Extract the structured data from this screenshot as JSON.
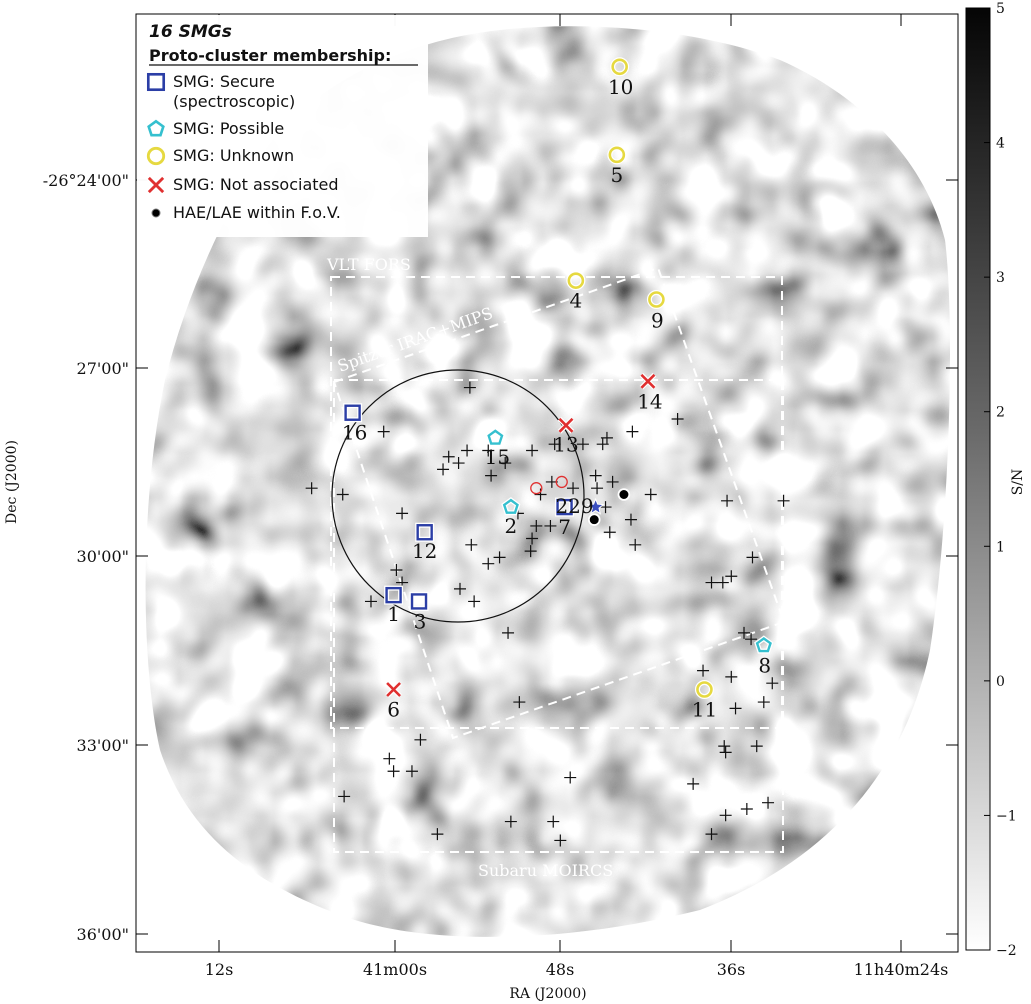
{
  "chart_data": {
    "type": "scatter",
    "xlabel": "RA (J2000)",
    "ylabel": "Dec (J2000)",
    "x_ticks": [
      "12s",
      "41m00s",
      "48s",
      "36s",
      "11h40m24s"
    ],
    "y_ticks": [
      "-26°24'00\"",
      "27'00\"",
      "30'00\"",
      "33'00\"",
      "36'00\""
    ],
    "colorbar": {
      "label": "S/N",
      "range": [
        -2,
        5
      ],
      "ticks": [
        "5",
        "4",
        "3",
        "2",
        "1",
        "0",
        "−1",
        "−2"
      ]
    },
    "legend": {
      "title": "16 SMGs",
      "subtitle": "Proto-cluster membership:",
      "entries": [
        {
          "key": "secure",
          "lines": [
            "SMG: Secure",
            "(spectroscopic)"
          ],
          "color": "#2b3ea6",
          "marker": "square"
        },
        {
          "key": "possible",
          "lines": [
            "SMG: Possible"
          ],
          "color": "#35c0cf",
          "marker": "pentagon"
        },
        {
          "key": "unknown",
          "lines": [
            "SMG: Unknown"
          ],
          "color": "#e6d940",
          "marker": "circle"
        },
        {
          "key": "not_associated",
          "lines": [
            "SMG: Not associated"
          ],
          "color": "#e03030",
          "marker": "x"
        },
        {
          "key": "hae",
          "lines": [
            "HAE/LAE within F.o.V."
          ],
          "color": "#000000",
          "marker": "dot"
        }
      ]
    },
    "fields": {
      "vlt": "VLT FORS",
      "spitzer": "Spitzer IRAC+MIPS",
      "subaru": "Subaru MOIRCS"
    },
    "smgs": [
      {
        "id": "1",
        "cls": "secure",
        "ra_s": 60.1,
        "dec_m": 30.6
      },
      {
        "id": "2",
        "cls": "possible",
        "ra_s": 51.8,
        "dec_m": 29.2
      },
      {
        "id": "3",
        "cls": "secure",
        "ra_s": 58.3,
        "dec_m": 30.7
      },
      {
        "id": "4",
        "cls": "unknown",
        "ra_s": 47.2,
        "dec_m": 25.6
      },
      {
        "id": "5",
        "cls": "unknown",
        "ra_s": 44.3,
        "dec_m": 23.6
      },
      {
        "id": "6",
        "cls": "not_associated",
        "ra_s": 60.1,
        "dec_m": 32.1
      },
      {
        "id": "7",
        "cls": "secure",
        "ra_s": 48.0,
        "dec_m": 29.2
      },
      {
        "id": "8",
        "cls": "possible",
        "ra_s": 33.9,
        "dec_m": 31.4
      },
      {
        "id": "9",
        "cls": "unknown",
        "ra_s": 41.5,
        "dec_m": 25.9
      },
      {
        "id": "10",
        "cls": "unknown",
        "ra_s": 44.1,
        "dec_m": 22.2
      },
      {
        "id": "11",
        "cls": "unknown",
        "ra_s": 38.1,
        "dec_m": 32.1
      },
      {
        "id": "12",
        "cls": "secure",
        "ra_s": 57.9,
        "dec_m": 29.6
      },
      {
        "id": "13",
        "cls": "not_associated",
        "ra_s": 47.9,
        "dec_m": 27.9
      },
      {
        "id": "14",
        "cls": "not_associated",
        "ra_s": 42.1,
        "dec_m": 27.2
      },
      {
        "id": "15",
        "cls": "possible",
        "ra_s": 52.9,
        "dec_m": 28.1
      },
      {
        "id": "16",
        "cls": "secure",
        "ra_s": 63.0,
        "dec_m": 27.7
      }
    ],
    "star": {
      "label": "229",
      "ra_s": 45.8,
      "dec_m": 29.2
    },
    "hae_filled": [
      {
        "ra_s": 45.9,
        "dec_m": 29.4
      },
      {
        "ra_s": 43.8,
        "dec_m": 29.0
      }
    ],
    "hae_open": [
      {
        "ra_s": 50.0,
        "dec_m": 28.9
      },
      {
        "ra_s": 48.2,
        "dec_m": 28.8
      }
    ],
    "crosses": [
      [
        54.7,
        27.3
      ],
      [
        60.8,
        28.0
      ],
      [
        56.2,
        28.4
      ],
      [
        54.9,
        28.3
      ],
      [
        53.4,
        28.3
      ],
      [
        52.2,
        28.5
      ],
      [
        50.3,
        28.3
      ],
      [
        48.7,
        28.2
      ],
      [
        46.7,
        28.2
      ],
      [
        45.3,
        28.2
      ],
      [
        45.0,
        28.1
      ],
      [
        40.0,
        27.8
      ],
      [
        43.2,
        28.0
      ],
      [
        56.6,
        28.6
      ],
      [
        55.5,
        28.5
      ],
      [
        53.2,
        28.7
      ],
      [
        49.7,
        29.0
      ],
      [
        48.9,
        28.8
      ],
      [
        45.8,
        28.7
      ],
      [
        47.4,
        28.9
      ],
      [
        45.7,
        28.9
      ],
      [
        44.6,
        28.8
      ],
      [
        41.9,
        29.0
      ],
      [
        65.9,
        28.9
      ],
      [
        63.7,
        29.0
      ],
      [
        59.5,
        29.3
      ],
      [
        51.3,
        29.3
      ],
      [
        50.0,
        29.5
      ],
      [
        50.3,
        29.7
      ],
      [
        45.1,
        29.2
      ],
      [
        43.3,
        29.4
      ],
      [
        36.5,
        29.1
      ],
      [
        32.5,
        29.1
      ],
      [
        44.8,
        29.6
      ],
      [
        43.0,
        29.8
      ],
      [
        49.0,
        29.5
      ],
      [
        50.4,
        29.9
      ],
      [
        54.6,
        29.8
      ],
      [
        59.9,
        30.2
      ],
      [
        59.5,
        30.4
      ],
      [
        52.6,
        30.0
      ],
      [
        53.4,
        30.1
      ],
      [
        34.7,
        30.0
      ],
      [
        37.6,
        30.4
      ],
      [
        36.8,
        30.4
      ],
      [
        36.2,
        30.3
      ],
      [
        54.4,
        30.7
      ],
      [
        55.4,
        30.5
      ],
      [
        61.7,
        30.7
      ],
      [
        52.0,
        31.2
      ],
      [
        35.3,
        31.2
      ],
      [
        34.8,
        31.3
      ],
      [
        38.2,
        31.8
      ],
      [
        36.2,
        31.9
      ],
      [
        33.9,
        32.3
      ],
      [
        33.3,
        32.0
      ],
      [
        35.9,
        32.4
      ],
      [
        51.2,
        32.3
      ],
      [
        58.2,
        32.9
      ],
      [
        60.4,
        33.2
      ],
      [
        60.1,
        33.4
      ],
      [
        58.8,
        33.4
      ],
      [
        36.7,
        33.0
      ],
      [
        36.6,
        33.1
      ],
      [
        34.4,
        33.0
      ],
      [
        47.6,
        33.5
      ],
      [
        38.9,
        33.6
      ],
      [
        63.6,
        33.8
      ],
      [
        57.0,
        34.4
      ],
      [
        51.8,
        34.2
      ],
      [
        48.8,
        34.2
      ],
      [
        36.6,
        34.1
      ],
      [
        35.1,
        34.0
      ],
      [
        33.6,
        33.9
      ],
      [
        37.6,
        34.4
      ],
      [
        48.3,
        34.5
      ]
    ]
  }
}
